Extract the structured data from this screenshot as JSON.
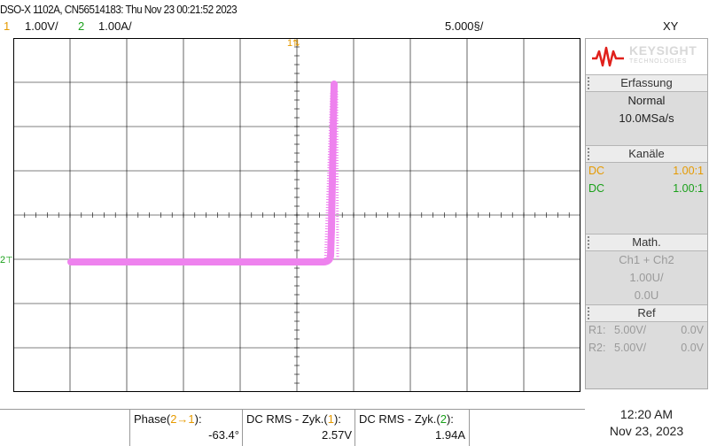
{
  "header": {
    "title": "DSO-X 1102A, CN56514183: Thu Nov 23 00:21:52 2023",
    "ch1_num": "1",
    "ch1_scale": "1.00V/",
    "ch2_num": "2",
    "ch2_scale": "1.00A/",
    "timebase": "5.000§/",
    "mode": "XY"
  },
  "screen": {
    "ch1_marker": "1",
    "ch2_marker": "2",
    "trace_color": "#ee82ee",
    "grid_color": "#000000"
  },
  "panel": {
    "brand": "KEYSIGHT",
    "brand_sub": "TECHNOLOGIES",
    "acq_title": "Erfassung",
    "acq_mode": "Normal",
    "acq_rate": "10.0MSa/s",
    "channels_title": "Kanäle",
    "ch1_coupling": "DC",
    "ch1_probe": "1.00:1",
    "ch2_coupling": "DC",
    "ch2_probe": "1.00:1",
    "math_title": "Math.",
    "math_func": "Ch1 + Ch2",
    "math_scale": "1.00U/",
    "math_offset": "0.0U",
    "ref_title": "Ref",
    "r1_label": "R1:",
    "r1_scale": "5.00V/",
    "r1_offset": "0.0V",
    "r2_label": "R2:",
    "r2_scale": "5.00V/",
    "r2_offset": "0.0V"
  },
  "measurements": [
    {
      "label_pre": "Phase(",
      "label_ch": "2→1",
      "label_post": "):",
      "value": "-63.4°"
    },
    {
      "label_pre": "DC RMS - Zyk.(",
      "label_ch": "1",
      "label_post": "):",
      "value": "2.57V"
    },
    {
      "label_pre": "DC RMS - Zyk.(",
      "label_ch": "2",
      "label_post": "):",
      "value": "1.94A"
    }
  ],
  "clock": {
    "time": "12:20 AM",
    "date": "Nov 23, 2023"
  }
}
